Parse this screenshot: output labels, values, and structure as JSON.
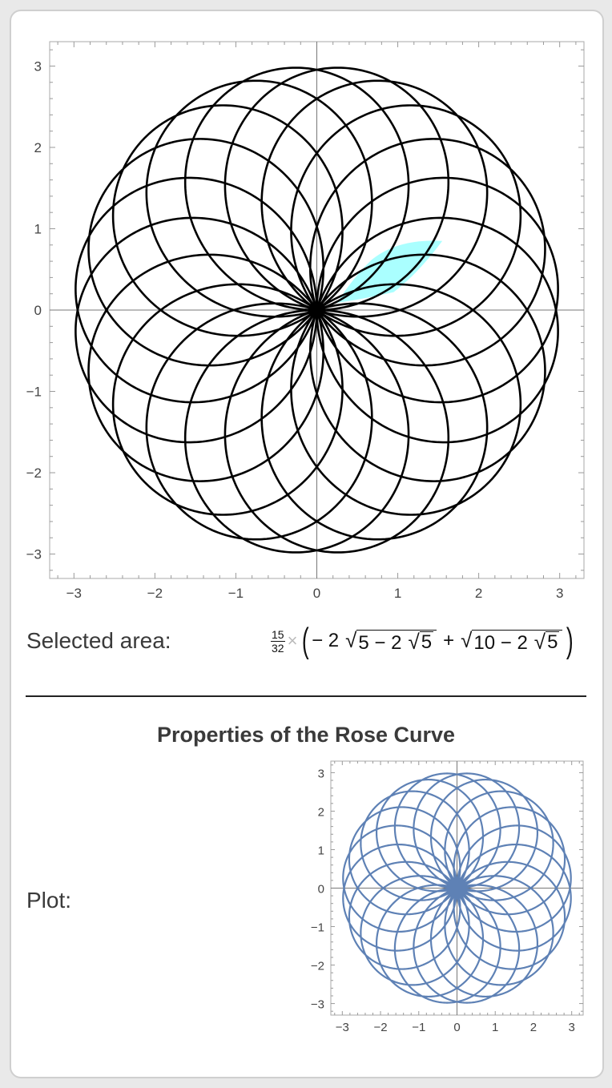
{
  "selected_area": {
    "label": "Selected area:",
    "formula": {
      "coefficient_numerator": "15",
      "coefficient_denominator": "32",
      "times": "×",
      "open_paren": "(",
      "term1_coefficient": "− 2",
      "term1_radicand_a": "5 − 2",
      "term1_inner_radicand": "5",
      "plus": "+",
      "term2_radicand_a": "10 − 2",
      "term2_inner_radicand": "5",
      "close_paren": ")"
    }
  },
  "properties": {
    "title": "Properties of the Rose Curve",
    "plot_label": "Plot:"
  },
  "chart_data": [
    {
      "type": "line",
      "subtype": "polar",
      "curve_parameters": {
        "amplitude": 3,
        "k": "10/9",
        "form": "r = a sin(k θ)"
      },
      "xlim": [
        -3.3,
        3.3
      ],
      "ylim": [
        -3.3,
        3.3
      ],
      "xticks": [
        "−3",
        "−2",
        "−1",
        "0",
        "1",
        "2",
        "3"
      ],
      "yticks": [
        "−3",
        "−2",
        "−1",
        "0",
        "1",
        "2",
        "3"
      ],
      "grid": false,
      "line_color": "#000000",
      "highlight_region_color": "#aaffff",
      "highlight_region": "selected area between two adjacent petals, first quadrant"
    },
    {
      "type": "line",
      "subtype": "polar",
      "curve_parameters": {
        "amplitude": 3,
        "k": "10/9",
        "form": "r = a sin(k θ)"
      },
      "xlim": [
        -3.3,
        3.3
      ],
      "ylim": [
        -3.3,
        3.3
      ],
      "xticks": [
        "−3",
        "−2",
        "−1",
        "0",
        "1",
        "2",
        "3"
      ],
      "yticks": [
        "−3",
        "−2",
        "−1",
        "0",
        "1",
        "2",
        "3"
      ],
      "grid": false,
      "line_color": "#5e81b5"
    }
  ]
}
